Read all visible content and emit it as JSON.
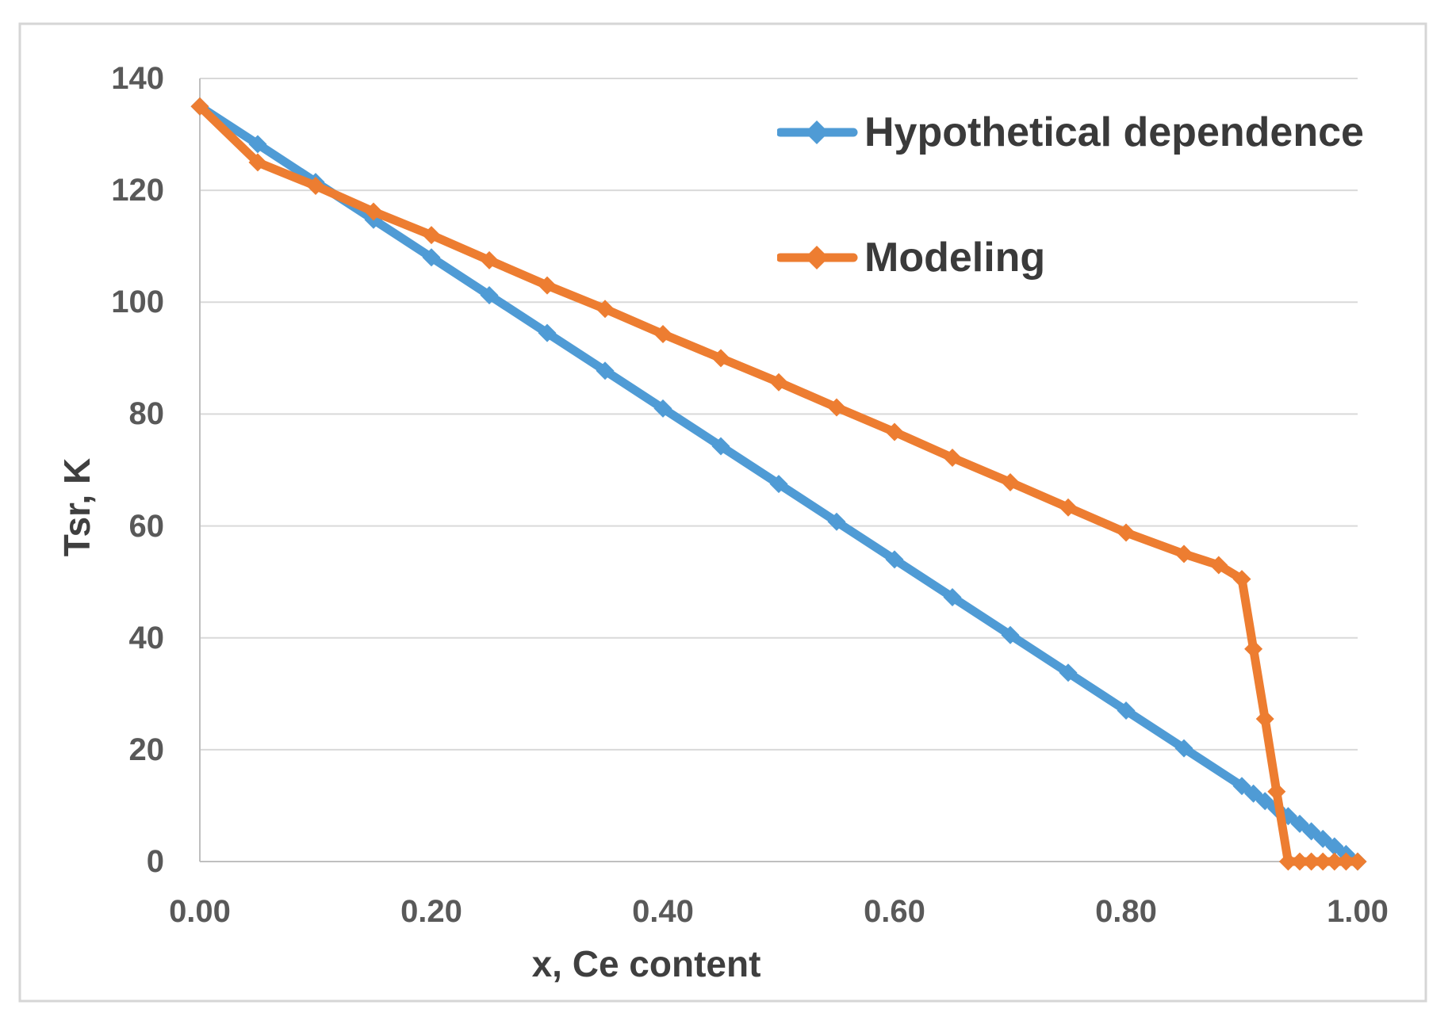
{
  "chart_data": {
    "type": "line",
    "title": "",
    "xlabel": "x, Ce content",
    "ylabel": "Tsr, K",
    "xlim": [
      0,
      1
    ],
    "ylim": [
      0,
      140
    ],
    "grid": "horizontal",
    "legend_position": "inside-top-right",
    "xticks": [
      {
        "value": 0.0,
        "label": "0.00"
      },
      {
        "value": 0.2,
        "label": "0.20"
      },
      {
        "value": 0.4,
        "label": "0.40"
      },
      {
        "value": 0.6,
        "label": "0.60"
      },
      {
        "value": 0.8,
        "label": "0.80"
      },
      {
        "value": 1.0,
        "label": "1.00"
      }
    ],
    "yticks": [
      {
        "value": 0,
        "label": "0"
      },
      {
        "value": 20,
        "label": "20"
      },
      {
        "value": 40,
        "label": "40"
      },
      {
        "value": 60,
        "label": "60"
      },
      {
        "value": 80,
        "label": "80"
      },
      {
        "value": 100,
        "label": "100"
      },
      {
        "value": 120,
        "label": "120"
      },
      {
        "value": 140,
        "label": "140"
      }
    ],
    "series": [
      {
        "name": "Hypothetical dependence",
        "color": "#4F9BD5",
        "marker": "diamond",
        "x": [
          0,
          0.05,
          0.1,
          0.15,
          0.2,
          0.25,
          0.3,
          0.35,
          0.4,
          0.45,
          0.5,
          0.55,
          0.6,
          0.65,
          0.7,
          0.75,
          0.8,
          0.85,
          0.9,
          0.91,
          0.92,
          0.93,
          0.94,
          0.95,
          0.96,
          0.97,
          0.98,
          0.99,
          1.0
        ],
        "y": [
          135,
          128.25,
          121.5,
          114.75,
          108,
          101.25,
          94.5,
          87.75,
          81,
          74.25,
          67.5,
          60.75,
          54,
          47.25,
          40.5,
          33.75,
          27,
          20.25,
          13.5,
          12.15,
          10.8,
          9.45,
          8.1,
          6.75,
          5.4,
          4.05,
          2.7,
          1.35,
          0
        ]
      },
      {
        "name": "Modeling",
        "color": "#ED7D31",
        "marker": "diamond",
        "x": [
          0,
          0.05,
          0.1,
          0.15,
          0.2,
          0.25,
          0.3,
          0.35,
          0.4,
          0.45,
          0.5,
          0.55,
          0.6,
          0.65,
          0.7,
          0.75,
          0.8,
          0.85,
          0.88,
          0.9,
          0.91,
          0.92,
          0.93,
          0.94,
          0.95,
          0.96,
          0.97,
          0.98,
          0.99,
          1.0
        ],
        "y": [
          135,
          125,
          120.8,
          116.2,
          112,
          107.5,
          103,
          98.8,
          94.3,
          90,
          85.7,
          81.2,
          76.8,
          72.2,
          67.8,
          63.3,
          58.8,
          55,
          53,
          50.5,
          38,
          25.5,
          12.5,
          0,
          0,
          0,
          0,
          0,
          0,
          0
        ]
      }
    ],
    "colors": {
      "background": "#FFFFFF",
      "frame": "#D6D6D6",
      "grid": "#D9D9D9",
      "axis": "#BFBFBF",
      "tick_text": "#595959",
      "title_text": "#3F3F3F"
    }
  }
}
